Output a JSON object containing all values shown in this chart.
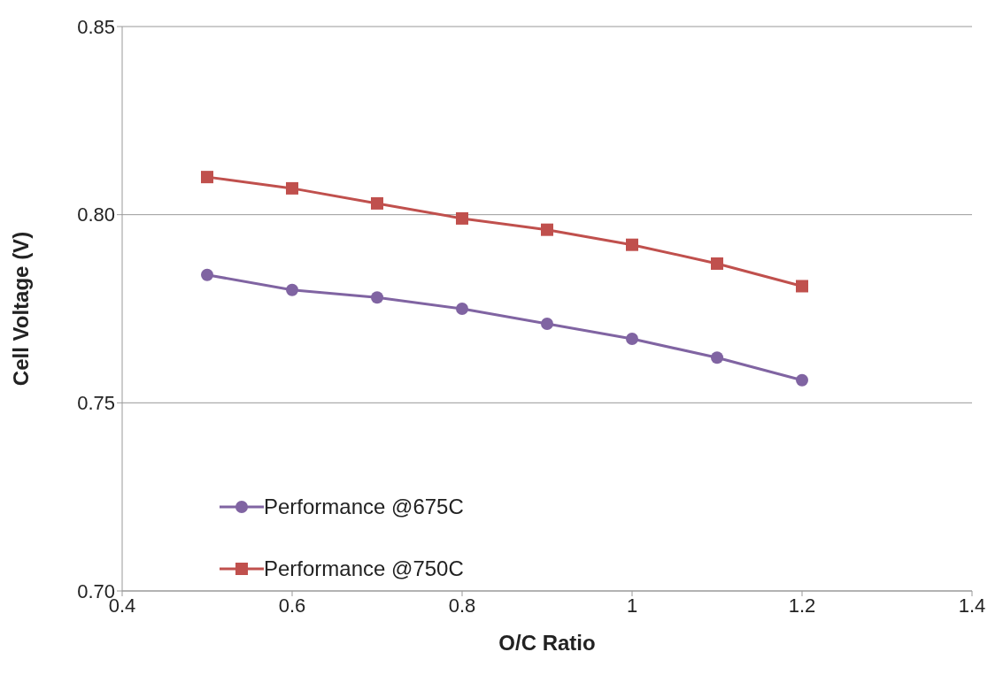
{
  "chart_data": {
    "type": "line",
    "xlabel": "O/C Ratio",
    "ylabel": "Cell Voltage (V)",
    "x": [
      0.5,
      0.6,
      0.7,
      0.8,
      0.9,
      1.0,
      1.1,
      1.2
    ],
    "series": [
      {
        "name": "Performance @675C",
        "color": "#8064a2",
        "marker": "circle",
        "values": [
          0.784,
          0.78,
          0.778,
          0.775,
          0.771,
          0.767,
          0.762,
          0.756
        ]
      },
      {
        "name": "Performance @750C",
        "color": "#c0504d",
        "marker": "square",
        "values": [
          0.81,
          0.807,
          0.803,
          0.799,
          0.796,
          0.792,
          0.787,
          0.781
        ]
      }
    ],
    "xlim": [
      0.4,
      1.4
    ],
    "xticks": [
      0.4,
      0.6,
      0.8,
      1,
      1.2,
      1.4
    ],
    "ylim": [
      0.7,
      0.85
    ],
    "yticks": [
      {
        "value": 0.7,
        "label": "0.70"
      },
      {
        "value": 0.75,
        "label": "0.75"
      },
      {
        "value": 0.8,
        "label": "0.80"
      },
      {
        "value": 0.85,
        "label": "0.85"
      }
    ],
    "grid": "y",
    "legend": "bottom left",
    "line_style": "solid"
  }
}
